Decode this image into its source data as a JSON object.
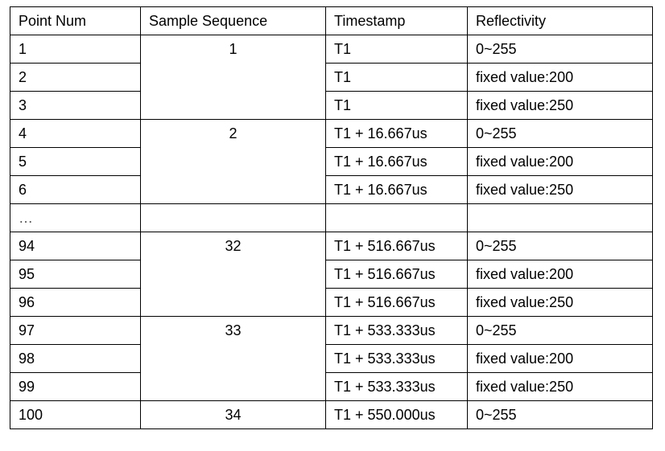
{
  "table": {
    "headers": [
      "Point Num",
      "Sample Sequence",
      "Timestamp",
      "Reflectivity"
    ],
    "groups": [
      {
        "sequence": "1",
        "rows": [
          {
            "point": "1",
            "timestamp": "T1",
            "reflectivity": "0~255"
          },
          {
            "point": "2",
            "timestamp": "T1",
            "reflectivity": "fixed value:200"
          },
          {
            "point": "3",
            "timestamp": "T1",
            "reflectivity": "fixed value:250"
          }
        ]
      },
      {
        "sequence": "2",
        "rows": [
          {
            "point": "4",
            "timestamp": "T1 + 16.667us",
            "reflectivity": "0~255"
          },
          {
            "point": "5",
            "timestamp": "T1 + 16.667us",
            "reflectivity": "fixed value:200"
          },
          {
            "point": "6",
            "timestamp": "T1 + 16.667us",
            "reflectivity": "fixed value:250"
          }
        ]
      },
      {
        "sequence": "",
        "rows": [
          {
            "point": "…",
            "timestamp": "",
            "reflectivity": ""
          }
        ]
      },
      {
        "sequence": "32",
        "rows": [
          {
            "point": "94",
            "timestamp": "T1 + 516.667us",
            "reflectivity": "0~255"
          },
          {
            "point": "95",
            "timestamp": "T1 + 516.667us",
            "reflectivity": "fixed value:200"
          },
          {
            "point": "96",
            "timestamp": "T1 + 516.667us",
            "reflectivity": "fixed value:250"
          }
        ]
      },
      {
        "sequence": "33",
        "rows": [
          {
            "point": "97",
            "timestamp": "T1 + 533.333us",
            "reflectivity": "0~255"
          },
          {
            "point": "98",
            "timestamp": "T1 + 533.333us",
            "reflectivity": "fixed value:200"
          },
          {
            "point": "99",
            "timestamp": "T1 + 533.333us",
            "reflectivity": "fixed value:250"
          }
        ]
      },
      {
        "sequence": "34",
        "rows": [
          {
            "point": "100",
            "timestamp": "T1 + 550.000us",
            "reflectivity": "0~255"
          }
        ]
      }
    ]
  }
}
